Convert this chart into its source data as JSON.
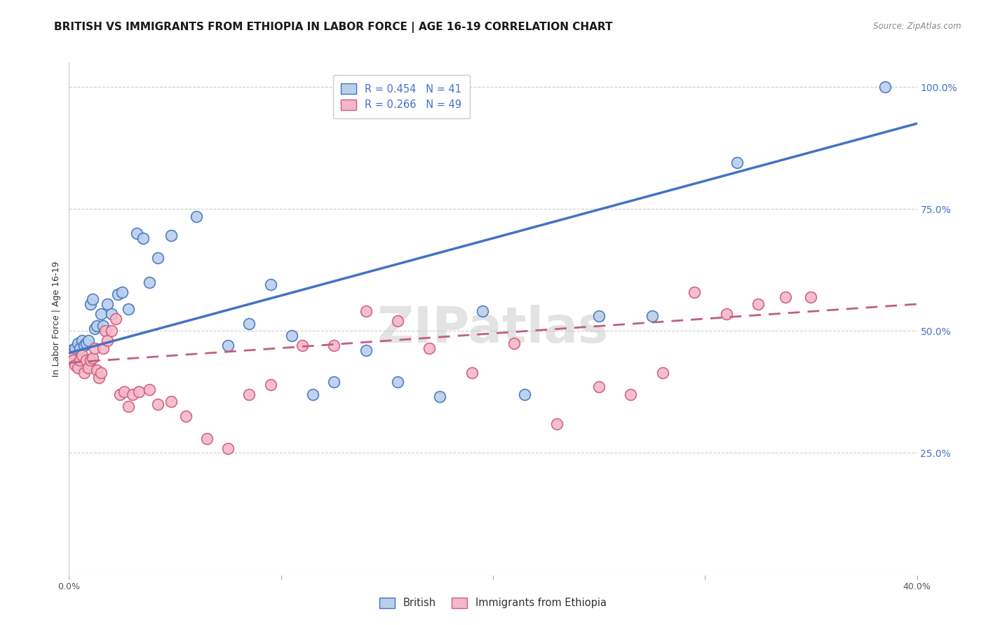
{
  "title": "BRITISH VS IMMIGRANTS FROM ETHIOPIA IN LABOR FORCE | AGE 16-19 CORRELATION CHART",
  "source": "Source: ZipAtlas.com",
  "ylabel": "In Labor Force | Age 16-19",
  "xlim": [
    0.0,
    0.4
  ],
  "ylim": [
    0.0,
    1.05
  ],
  "ytick_labels_right": [
    "100.0%",
    "75.0%",
    "50.0%",
    "25.0%"
  ],
  "ytick_positions_right": [
    1.0,
    0.75,
    0.5,
    0.25
  ],
  "watermark": "ZIPatlas",
  "british_R": 0.454,
  "british_N": 41,
  "ethiopia_R": 0.266,
  "ethiopia_N": 49,
  "british_color": "#b8d0ea",
  "british_edge_color": "#4472c4",
  "ethiopia_color": "#f4b8c8",
  "ethiopia_edge_color": "#d05a7a",
  "british_line_color": "#4472c4",
  "ethiopia_line_color": "#c0607a",
  "blue_line_x0": 0.0,
  "blue_line_y0": 0.455,
  "blue_line_x1": 0.4,
  "blue_line_y1": 0.925,
  "pink_line_x0": 0.0,
  "pink_line_y0": 0.435,
  "pink_line_x1": 0.4,
  "pink_line_y1": 0.555,
  "british_x": [
    0.001,
    0.002,
    0.003,
    0.004,
    0.005,
    0.006,
    0.007,
    0.008,
    0.009,
    0.01,
    0.011,
    0.012,
    0.013,
    0.015,
    0.016,
    0.018,
    0.02,
    0.023,
    0.025,
    0.028,
    0.032,
    0.035,
    0.038,
    0.042,
    0.048,
    0.06,
    0.075,
    0.085,
    0.095,
    0.105,
    0.115,
    0.125,
    0.14,
    0.155,
    0.175,
    0.195,
    0.215,
    0.25,
    0.275,
    0.315,
    0.385
  ],
  "british_y": [
    0.46,
    0.455,
    0.465,
    0.475,
    0.465,
    0.48,
    0.47,
    0.475,
    0.48,
    0.555,
    0.565,
    0.505,
    0.51,
    0.535,
    0.51,
    0.555,
    0.535,
    0.575,
    0.58,
    0.545,
    0.7,
    0.69,
    0.6,
    0.65,
    0.695,
    0.735,
    0.47,
    0.515,
    0.595,
    0.49,
    0.37,
    0.395,
    0.46,
    0.395,
    0.365,
    0.54,
    0.37,
    0.53,
    0.53,
    0.845,
    1.0
  ],
  "ethiopia_x": [
    0.001,
    0.002,
    0.003,
    0.004,
    0.005,
    0.006,
    0.007,
    0.008,
    0.009,
    0.01,
    0.011,
    0.012,
    0.013,
    0.014,
    0.015,
    0.016,
    0.017,
    0.018,
    0.02,
    0.022,
    0.024,
    0.026,
    0.028,
    0.03,
    0.033,
    0.038,
    0.042,
    0.048,
    0.055,
    0.065,
    0.075,
    0.085,
    0.095,
    0.11,
    0.125,
    0.14,
    0.155,
    0.17,
    0.19,
    0.21,
    0.23,
    0.25,
    0.265,
    0.28,
    0.295,
    0.31,
    0.325,
    0.338,
    0.35
  ],
  "ethiopia_y": [
    0.445,
    0.44,
    0.43,
    0.425,
    0.44,
    0.45,
    0.415,
    0.44,
    0.425,
    0.44,
    0.445,
    0.465,
    0.42,
    0.405,
    0.415,
    0.465,
    0.5,
    0.48,
    0.5,
    0.525,
    0.37,
    0.375,
    0.345,
    0.37,
    0.375,
    0.38,
    0.35,
    0.355,
    0.325,
    0.28,
    0.26,
    0.37,
    0.39,
    0.47,
    0.47,
    0.54,
    0.52,
    0.465,
    0.415,
    0.475,
    0.31,
    0.385,
    0.37,
    0.415,
    0.58,
    0.535,
    0.555,
    0.57,
    0.57
  ],
  "title_fontsize": 11,
  "axis_label_fontsize": 9,
  "tick_fontsize": 9,
  "legend_fontsize": 10.5
}
